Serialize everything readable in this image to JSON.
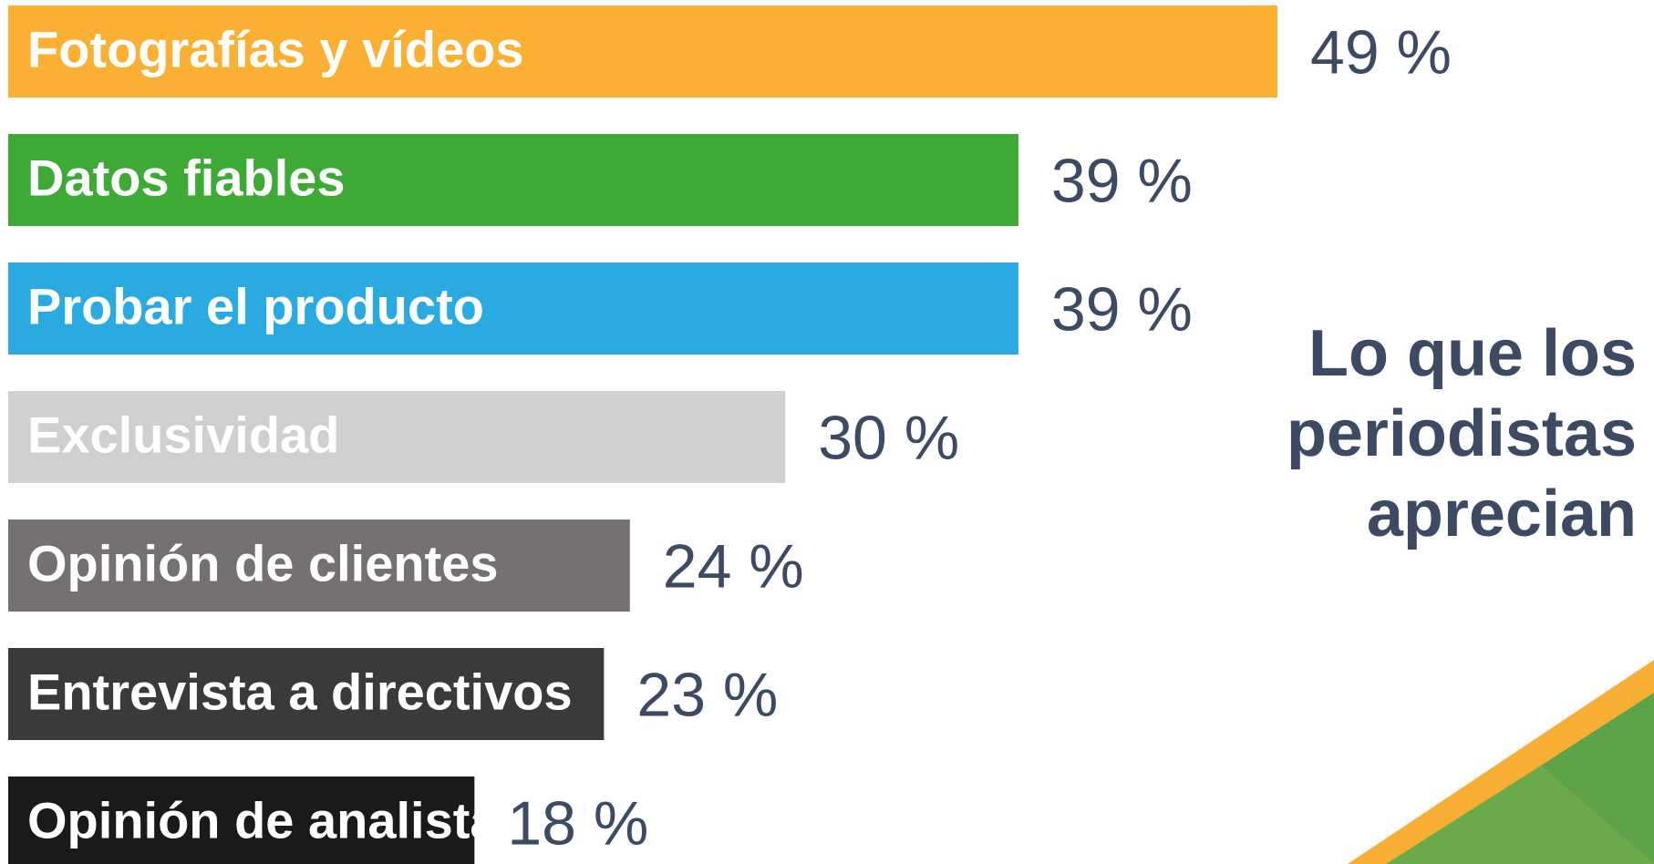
{
  "chart_data": {
    "type": "bar",
    "orientation": "horizontal",
    "title": [
      "Lo que los",
      "periodistas",
      "aprecian"
    ],
    "categories": [
      "Fotografías y vídeos",
      "Datos fiables",
      "Probar el producto",
      "Exclusividad",
      "Opinión de clientes",
      "Entrevista a directivos",
      "Opinión de analistas"
    ],
    "values": [
      49,
      39,
      39,
      30,
      24,
      23,
      18
    ],
    "value_labels": [
      "49 %",
      "39 %",
      "39 %",
      "30 %",
      "24 %",
      "23 %",
      "18 %"
    ],
    "colors": [
      "#fbb034",
      "#3daa35",
      "#29abe2",
      "#d0cfcf",
      "#767171",
      "#3a3a3a",
      "#1a1a1a"
    ]
  }
}
